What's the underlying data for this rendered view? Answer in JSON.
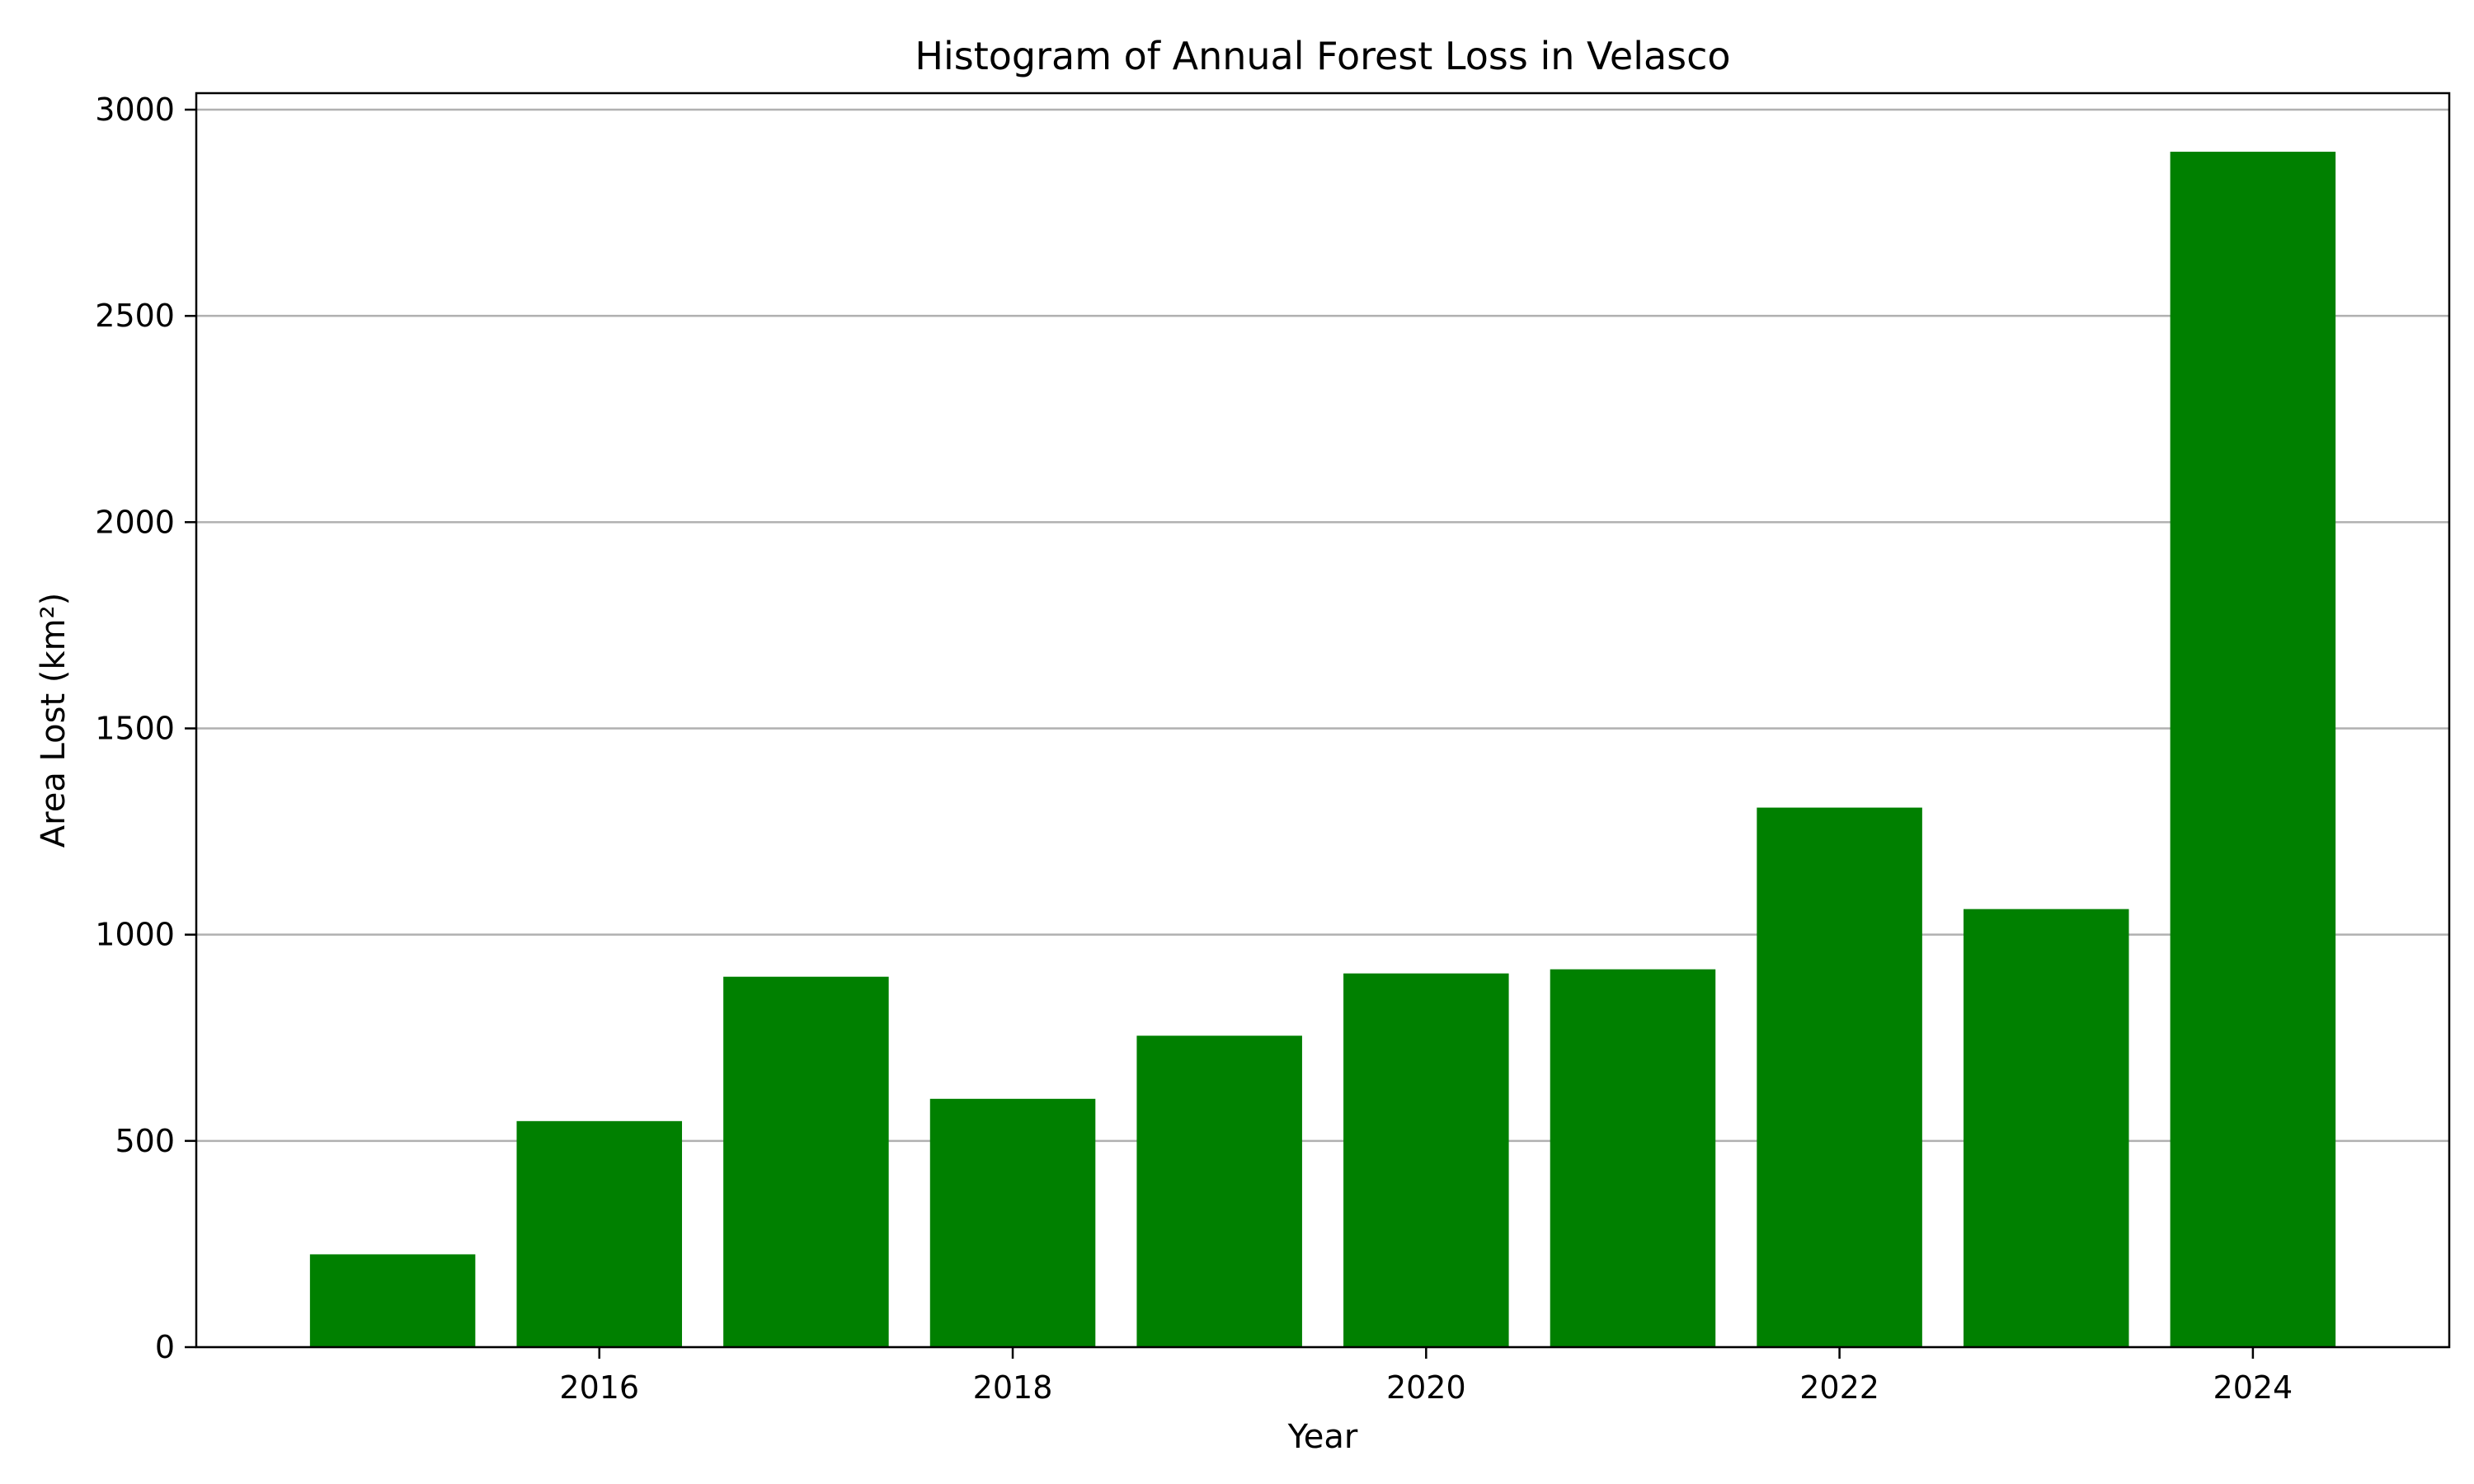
{
  "chart_data": {
    "type": "bar",
    "title": "Histogram of Annual Forest Loss in Velasco",
    "xlabel": "Year",
    "ylabel": "Area Lost (km²)",
    "x": [
      2015,
      2016,
      2017,
      2018,
      2019,
      2020,
      2021,
      2022,
      2023,
      2024
    ],
    "values": [
      225,
      548,
      898,
      602,
      755,
      906,
      916,
      1308,
      1062,
      2898
    ],
    "bar_color": "#008000",
    "xlim": [
      2014.05,
      2024.95
    ],
    "ylim": [
      0,
      3040
    ],
    "xticks": [
      2016,
      2018,
      2020,
      2022,
      2024
    ],
    "xtick_labels": [
      "2016",
      "2018",
      "2020",
      "2022",
      "2024"
    ],
    "yticks": [
      0,
      500,
      1000,
      1500,
      2000,
      2500,
      3000
    ],
    "ytick_labels": [
      "0",
      "500",
      "1000",
      "1500",
      "2000",
      "2500",
      "3000"
    ],
    "grid": "y",
    "grid_color": "#b0b0b0",
    "legend": "none"
  }
}
